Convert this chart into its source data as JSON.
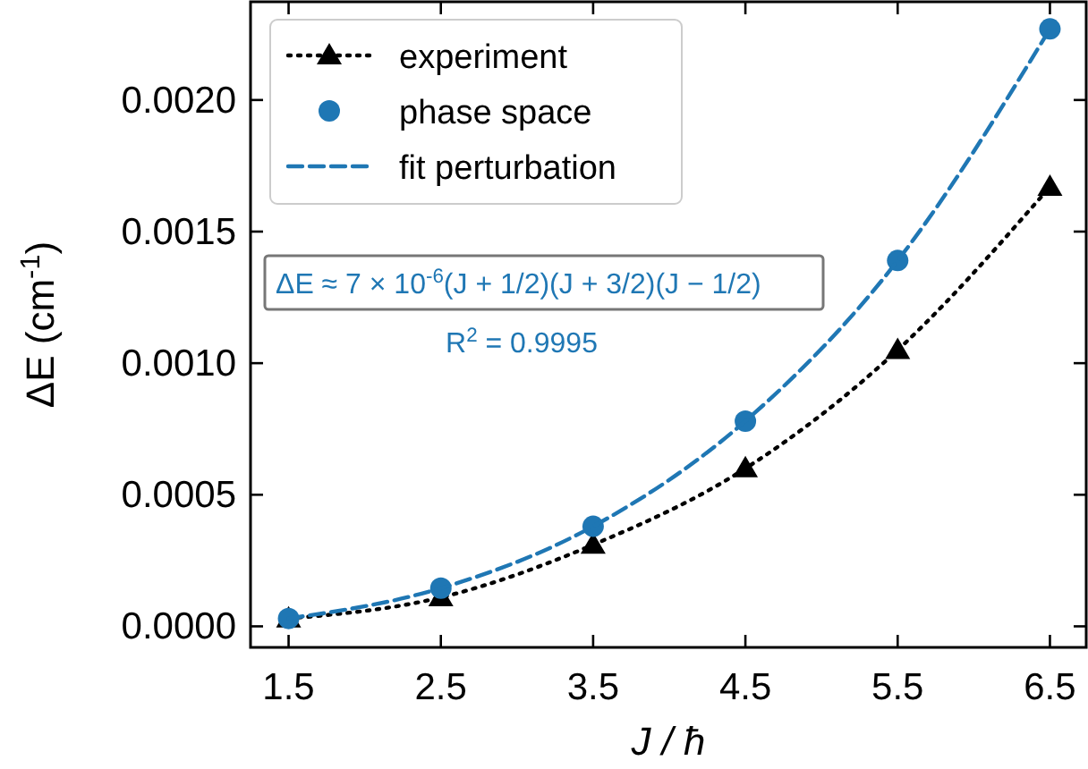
{
  "chart_data": {
    "type": "line",
    "xlabel": "J / ħ",
    "ylabel": "ΔE (cm$^{-1}$)",
    "x": [
      1.5,
      2.5,
      3.5,
      4.5,
      5.5,
      6.5
    ],
    "series": [
      {
        "name": "experiment",
        "color": "#000000",
        "marker": "triangle",
        "line_style": "dotted",
        "values": [
          3e-05,
          0.00011,
          0.00031,
          0.0006,
          0.00105,
          0.00167
        ]
      },
      {
        "name": "phase space",
        "type": "scatter",
        "color": "#1f77b4",
        "marker": "circle",
        "values": [
          3e-05,
          0.000145,
          0.00038,
          0.00078,
          0.00139,
          0.00227
        ]
      },
      {
        "name": "fit perturbation",
        "color": "#1f77b4",
        "marker": "none",
        "line_style": "dashed",
        "values": [
          3e-05,
          0.000145,
          0.00038,
          0.00078,
          0.00139,
          0.00227
        ]
      }
    ],
    "xlim": [
      1.25,
      6.75
    ],
    "ylim": [
      -8e-05,
      0.00238
    ],
    "xticks": [
      1.5,
      2.5,
      3.5,
      4.5,
      5.5,
      6.5
    ],
    "yticks": [
      {
        "value": 0,
        "label": "0.0000"
      },
      {
        "value": 0.0005,
        "label": "0.0005"
      },
      {
        "value": 0.001,
        "label": "0.0010"
      },
      {
        "value": 0.0015,
        "label": "0.0015"
      },
      {
        "value": 0.002,
        "label": "0.0020"
      }
    ],
    "legend": "top left",
    "annotations": [
      "ΔE ≈ 7 × 10$^{-6}$(J + 1/2)(J + 3/2)(J − 1/2)",
      "R$^{2}$ = 0.9995"
    ]
  }
}
